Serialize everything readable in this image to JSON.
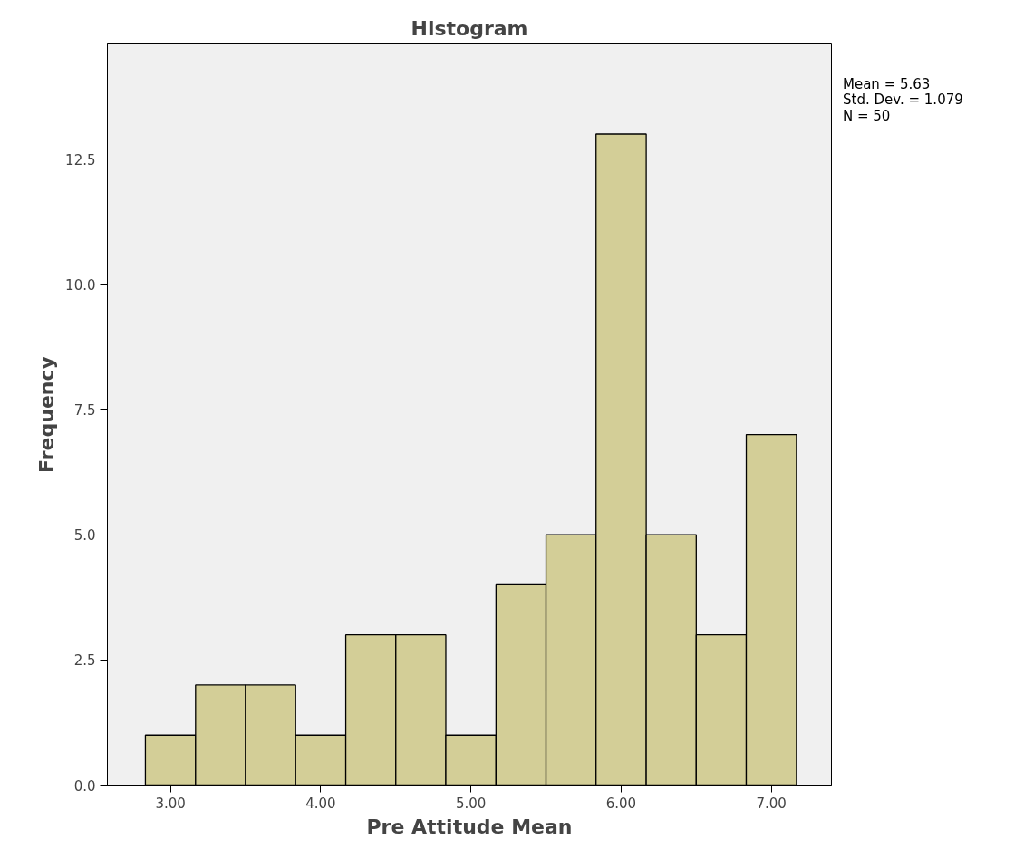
{
  "chart_data": {
    "type": "histogram",
    "title": "Histogram",
    "xlabel": "Pre Attitude Mean",
    "ylabel": "Frequency",
    "bins": [
      2.833,
      3.167,
      3.5,
      3.833,
      4.167,
      4.5,
      4.833,
      5.167,
      5.5,
      5.833,
      6.167,
      6.5,
      6.833,
      7.167
    ],
    "values": [
      1,
      2,
      2,
      1,
      3,
      3,
      1,
      4,
      5,
      13,
      5,
      3,
      7
    ],
    "color": "#d3ce97",
    "xlim": [
      2.58,
      7.4
    ],
    "ylim": [
      0,
      14.8
    ],
    "xticks": [
      {
        "value": 3,
        "label": "3.00"
      },
      {
        "value": 4,
        "label": "4.00"
      },
      {
        "value": 5,
        "label": "5.00"
      },
      {
        "value": 6,
        "label": "6.00"
      },
      {
        "value": 7,
        "label": "7.00"
      }
    ],
    "yticks": [
      {
        "value": 0,
        "label": "0.0"
      },
      {
        "value": 2.5,
        "label": "2.5"
      },
      {
        "value": 5,
        "label": "5.0"
      },
      {
        "value": 7.5,
        "label": "7.5"
      },
      {
        "value": 10,
        "label": "10.0"
      },
      {
        "value": 12.5,
        "label": "12.5"
      }
    ],
    "annotations": [
      "Mean = 5.63",
      "Std. Dev. = 1.079",
      "N = 50"
    ],
    "grid": false
  }
}
